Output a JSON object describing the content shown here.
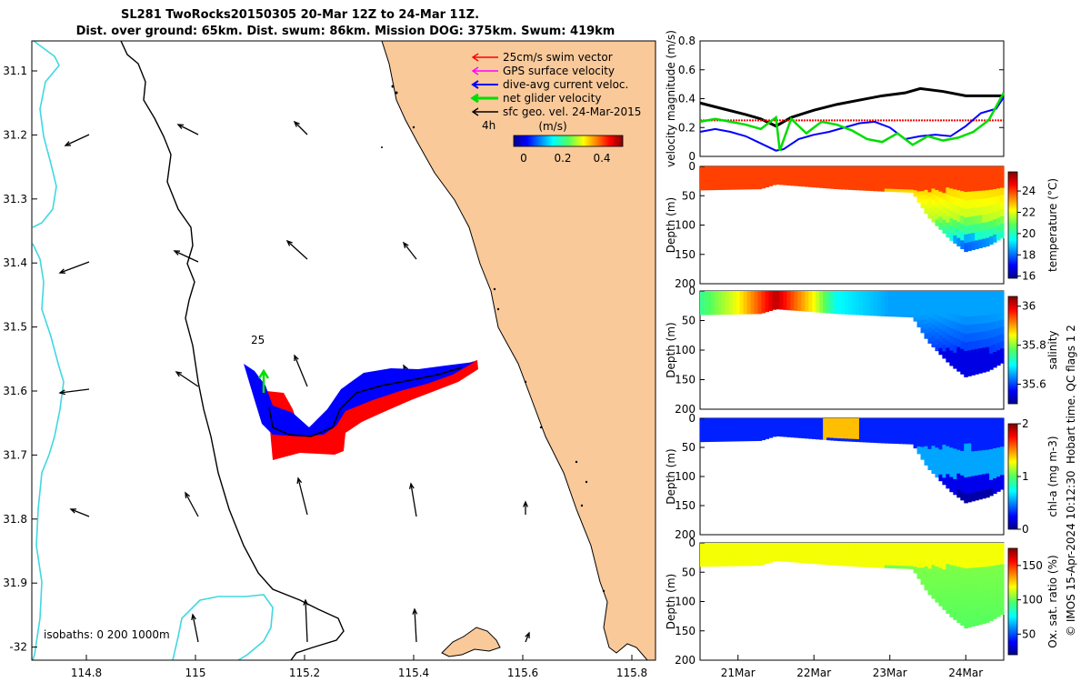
{
  "title": {
    "line1": "SL281 TwoRocks20150305 20-Mar 12Z to 24-Mar 11Z.",
    "line2": "Dist. over ground: 65km. Dist. swum: 86km. Mission DOG: 375km. Swum: 419km"
  },
  "colors": {
    "land": "#f9c99a",
    "swim_vector": "#ff0000",
    "gps_velocity": "#ff00ff",
    "dive_avg_current": "#0000ff",
    "net_velocity": "#00dd00",
    "geostrophic": "#000000",
    "isobath_200": "#40d8e0",
    "velocity_magnitude_black": "#000000"
  },
  "map": {
    "legend": {
      "swim": "25cm/s swim vector",
      "gps": "GPS surface velocity",
      "dive": "dive-avg current veloc.",
      "net": "net glider velocity",
      "geo": "sfc geo. vel. 24-Mar-2015"
    },
    "colorbar_title": "(m/s)",
    "colorbar_ticks": [
      "0",
      "0.2",
      "0.4"
    ],
    "time_label": "4h",
    "scale_label": "25",
    "isobaths_label": "isobaths: 0   200  1000m",
    "xticks": [
      "114.8",
      "115",
      "115.2",
      "115.4",
      "115.6",
      "115.8"
    ],
    "yticks": [
      "31.1",
      "31.2",
      "31.3",
      "31.4",
      "31.5",
      "31.6",
      "31.7",
      "31.8",
      "31.9",
      "-32"
    ]
  },
  "chart_data": [
    {
      "type": "line",
      "ylabel": "velocity magnitude (m/s)",
      "ylim": [
        0,
        0.8
      ],
      "yticks": [
        "0",
        "0.2",
        "0.4",
        "0.6",
        "0.8"
      ],
      "x_days": [
        20.5,
        24.5
      ],
      "series": [
        {
          "name": "sfc geo. vel.",
          "color": "#000000",
          "x": [
            20.5,
            20.8,
            21.1,
            21.3,
            21.5,
            21.7,
            22.0,
            22.3,
            22.6,
            22.9,
            23.2,
            23.4,
            23.7,
            24.0,
            24.3,
            24.5
          ],
          "values": [
            0.37,
            0.33,
            0.29,
            0.26,
            0.21,
            0.27,
            0.32,
            0.36,
            0.39,
            0.42,
            0.44,
            0.47,
            0.45,
            0.42,
            0.42,
            0.42
          ]
        },
        {
          "name": "25cm/s swim vector",
          "color": "#ff0000",
          "x": [
            20.5,
            24.5
          ],
          "values": [
            0.25,
            0.25
          ]
        },
        {
          "name": "dive-avg current veloc.",
          "color": "#0000ff",
          "x": [
            20.5,
            20.7,
            20.9,
            21.1,
            21.3,
            21.5,
            21.6,
            21.8,
            22.0,
            22.2,
            22.4,
            22.6,
            22.8,
            23.0,
            23.2,
            23.4,
            23.6,
            23.8,
            24.0,
            24.2,
            24.4,
            24.5
          ],
          "values": [
            0.17,
            0.19,
            0.17,
            0.14,
            0.09,
            0.04,
            0.05,
            0.12,
            0.15,
            0.17,
            0.2,
            0.23,
            0.24,
            0.2,
            0.12,
            0.14,
            0.15,
            0.14,
            0.21,
            0.3,
            0.33,
            0.41
          ]
        },
        {
          "name": "net glider velocity",
          "color": "#00dd00",
          "x": [
            20.5,
            20.7,
            20.9,
            21.1,
            21.3,
            21.5,
            21.55,
            21.7,
            21.9,
            22.1,
            22.3,
            22.5,
            22.7,
            22.9,
            23.1,
            23.3,
            23.5,
            23.7,
            23.9,
            24.1,
            24.3,
            24.5
          ],
          "values": [
            0.24,
            0.26,
            0.24,
            0.22,
            0.19,
            0.27,
            0.04,
            0.26,
            0.16,
            0.24,
            0.22,
            0.18,
            0.12,
            0.1,
            0.16,
            0.08,
            0.14,
            0.11,
            0.13,
            0.17,
            0.25,
            0.44
          ]
        }
      ]
    },
    {
      "type": "heatmap",
      "variable": "temperature",
      "ylabel": "Depth (m)",
      "clabel": "temperature (°C)",
      "ylim": [
        0,
        200
      ],
      "yticks": [
        "0",
        "50",
        "100",
        "150",
        "200"
      ],
      "clim": [
        15.8,
        25.8
      ],
      "cticks": [
        "16",
        "18",
        "20",
        "22",
        "24"
      ],
      "max_depth_profile": {
        "x": [
          20.5,
          21.3,
          21.5,
          22.3,
          22.9,
          23.3,
          23.5,
          23.8,
          24.0,
          24.3,
          24.5
        ],
        "values": [
          40,
          38,
          30,
          38,
          42,
          44,
          85,
          125,
          145,
          135,
          120
        ]
      },
      "bands": [
        {
          "depths": [
            0,
            40
          ],
          "value": 24.0
        },
        {
          "depths": [
            40,
            90
          ],
          "value": 22.3
        },
        {
          "depths": [
            90,
            120
          ],
          "value": 21.0
        },
        {
          "depths": [
            120,
            150
          ],
          "value": 18.5
        }
      ]
    },
    {
      "type": "heatmap",
      "variable": "salinity",
      "ylabel": "Depth (m)",
      "clabel": "salinity",
      "ylim": [
        0,
        200
      ],
      "yticks": [
        "0",
        "50",
        "100",
        "150",
        "200"
      ],
      "clim": [
        35.5,
        36.05
      ],
      "cticks": [
        "35.6",
        "35.8",
        "36"
      ],
      "surface_x": [
        20.5,
        21.0,
        21.3,
        21.5,
        21.7,
        22.0,
        22.3,
        23.0,
        24.5
      ],
      "surface_values": [
        35.75,
        35.85,
        35.95,
        36.02,
        35.95,
        35.85,
        35.7,
        35.65,
        35.65
      ],
      "deep_value": 35.55
    },
    {
      "type": "heatmap",
      "variable": "chl-a",
      "ylabel": "Depth (m)",
      "clabel": "chl-a (mg m-3)",
      "ylim": [
        0,
        200
      ],
      "yticks": [
        "0",
        "50",
        "100",
        "150",
        "200"
      ],
      "clim": [
        0,
        2
      ],
      "cticks": [
        "0",
        "1",
        "2"
      ],
      "surface_value": 0.3,
      "patch_value": 1.4,
      "deep_value": 0.05
    },
    {
      "type": "heatmap",
      "variable": "oxygen saturation",
      "ylabel": "Depth (m)",
      "clabel": "Ox. sat. ratio (%)",
      "ylim": [
        0,
        200
      ],
      "yticks": [
        "0",
        "50",
        "100",
        "150",
        "200"
      ],
      "clim": [
        20,
        175
      ],
      "cticks": [
        "50",
        "100",
        "150"
      ],
      "surface_value": 118,
      "deep_value": 98
    }
  ],
  "time_axis": {
    "ticks": [
      "21Mar",
      "22Mar",
      "23Mar",
      "24Mar"
    ],
    "days": [
      21,
      22,
      23,
      24
    ]
  },
  "side_note": {
    "qc": "Hobart time. QC flags 1  2",
    "stamp": "© IMOS 15-Apr-2024 10:12:30"
  }
}
